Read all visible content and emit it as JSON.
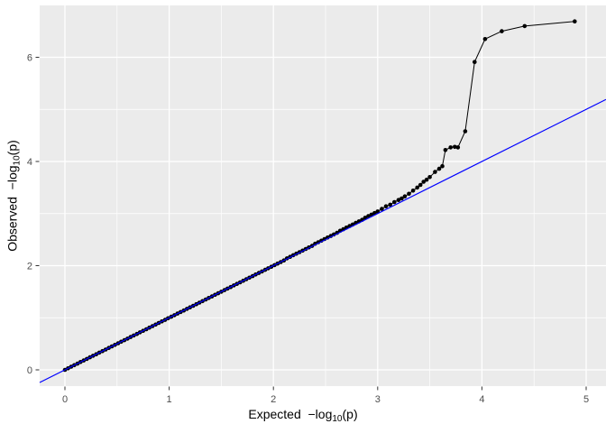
{
  "style": {
    "panel_bg": "#EBEBEB",
    "grid_color": "#FFFFFF",
    "tick_mark_color": "#333333",
    "tick_label_color": "#4D4D4D",
    "axis_title_color": "#000000",
    "point_color": "#000000",
    "ref_line_color": "#0000FF"
  },
  "chart_data": {
    "type": "scatter",
    "subtype": "qq-plot",
    "title": "",
    "xlabel_prefix": "Expected  −log",
    "xlabel_sub": "10",
    "xlabel_suffix": "(p)",
    "ylabel_prefix": "Observed  −log",
    "ylabel_sub": "10",
    "ylabel_suffix": "(p)",
    "x_ticks": [
      0,
      1,
      2,
      3,
      4,
      5
    ],
    "y_ticks": [
      0,
      2,
      4,
      6
    ],
    "x_minor_ticks": [
      0.5,
      1.5,
      2.5,
      3.5,
      4.5
    ],
    "y_minor_ticks": [
      1,
      3,
      5
    ],
    "xlim": [
      -0.24,
      5.19
    ],
    "ylim": [
      -0.31,
      6.99
    ],
    "grid": true,
    "legend_position": "none",
    "reference_line": {
      "slope": 1,
      "intercept": 0,
      "color": "#0000FF"
    },
    "series": [
      {
        "name": "observed-vs-expected",
        "marker": "filled-circle",
        "connect": true,
        "color": "#000000",
        "points": [
          [
            0.0,
            0.0
          ],
          [
            0.03,
            0.03
          ],
          [
            0.06,
            0.06
          ],
          [
            0.09,
            0.09
          ],
          [
            0.12,
            0.12
          ],
          [
            0.15,
            0.15
          ],
          [
            0.18,
            0.18
          ],
          [
            0.21,
            0.21
          ],
          [
            0.24,
            0.24
          ],
          [
            0.27,
            0.27
          ],
          [
            0.3,
            0.3
          ],
          [
            0.33,
            0.33
          ],
          [
            0.36,
            0.36
          ],
          [
            0.39,
            0.39
          ],
          [
            0.42,
            0.42
          ],
          [
            0.45,
            0.45
          ],
          [
            0.48,
            0.48
          ],
          [
            0.51,
            0.51
          ],
          [
            0.54,
            0.54
          ],
          [
            0.57,
            0.57
          ],
          [
            0.6,
            0.6
          ],
          [
            0.63,
            0.63
          ],
          [
            0.66,
            0.66
          ],
          [
            0.69,
            0.69
          ],
          [
            0.72,
            0.72
          ],
          [
            0.75,
            0.75
          ],
          [
            0.78,
            0.78
          ],
          [
            0.81,
            0.81
          ],
          [
            0.84,
            0.84
          ],
          [
            0.87,
            0.87
          ],
          [
            0.9,
            0.9
          ],
          [
            0.93,
            0.93
          ],
          [
            0.96,
            0.96
          ],
          [
            0.99,
            0.99
          ],
          [
            1.02,
            1.02
          ],
          [
            1.05,
            1.05
          ],
          [
            1.08,
            1.08
          ],
          [
            1.11,
            1.11
          ],
          [
            1.14,
            1.14
          ],
          [
            1.17,
            1.17
          ],
          [
            1.2,
            1.2
          ],
          [
            1.23,
            1.23
          ],
          [
            1.26,
            1.26
          ],
          [
            1.29,
            1.29
          ],
          [
            1.32,
            1.32
          ],
          [
            1.35,
            1.35
          ],
          [
            1.38,
            1.38
          ],
          [
            1.41,
            1.41
          ],
          [
            1.44,
            1.44
          ],
          [
            1.47,
            1.47
          ],
          [
            1.5,
            1.5
          ],
          [
            1.53,
            1.53
          ],
          [
            1.56,
            1.56
          ],
          [
            1.59,
            1.59
          ],
          [
            1.62,
            1.62
          ],
          [
            1.65,
            1.65
          ],
          [
            1.68,
            1.68
          ],
          [
            1.71,
            1.71
          ],
          [
            1.74,
            1.74
          ],
          [
            1.77,
            1.77
          ],
          [
            1.8,
            1.8
          ],
          [
            1.83,
            1.83
          ],
          [
            1.86,
            1.86
          ],
          [
            1.89,
            1.89
          ],
          [
            1.92,
            1.92
          ],
          [
            1.95,
            1.95
          ],
          [
            1.98,
            1.98
          ],
          [
            2.01,
            2.01
          ],
          [
            2.04,
            2.04
          ],
          [
            2.07,
            2.07
          ],
          [
            2.1,
            2.1
          ],
          [
            2.13,
            2.14
          ],
          [
            2.16,
            2.17
          ],
          [
            2.19,
            2.2
          ],
          [
            2.22,
            2.23
          ],
          [
            2.25,
            2.26
          ],
          [
            2.28,
            2.29
          ],
          [
            2.31,
            2.32
          ],
          [
            2.34,
            2.35
          ],
          [
            2.37,
            2.38
          ],
          [
            2.4,
            2.42
          ],
          [
            2.43,
            2.45
          ],
          [
            2.46,
            2.48
          ],
          [
            2.49,
            2.51
          ],
          [
            2.52,
            2.54
          ],
          [
            2.55,
            2.57
          ],
          [
            2.58,
            2.6
          ],
          [
            2.61,
            2.63
          ],
          [
            2.64,
            2.67
          ],
          [
            2.67,
            2.7
          ],
          [
            2.7,
            2.73
          ],
          [
            2.73,
            2.76
          ],
          [
            2.76,
            2.79
          ],
          [
            2.79,
            2.82
          ],
          [
            2.82,
            2.85
          ],
          [
            2.85,
            2.88
          ],
          [
            2.88,
            2.92
          ],
          [
            2.91,
            2.95
          ],
          [
            2.94,
            2.98
          ],
          [
            2.97,
            3.01
          ],
          [
            3.0,
            3.04
          ],
          [
            3.04,
            3.09
          ],
          [
            3.08,
            3.14
          ],
          [
            3.12,
            3.17
          ],
          [
            3.16,
            3.22
          ],
          [
            3.2,
            3.26
          ],
          [
            3.23,
            3.29
          ],
          [
            3.26,
            3.33
          ],
          [
            3.3,
            3.38
          ],
          [
            3.34,
            3.44
          ],
          [
            3.38,
            3.5
          ],
          [
            3.41,
            3.55
          ],
          [
            3.44,
            3.61
          ],
          [
            3.47,
            3.65
          ],
          [
            3.5,
            3.7
          ],
          [
            3.55,
            3.8
          ],
          [
            3.59,
            3.86
          ],
          [
            3.62,
            3.91
          ],
          [
            3.65,
            4.22
          ],
          [
            3.7,
            4.27
          ],
          [
            3.74,
            4.28
          ],
          [
            3.77,
            4.27
          ],
          [
            3.84,
            4.58
          ],
          [
            3.93,
            5.91
          ],
          [
            4.03,
            6.35
          ],
          [
            4.19,
            6.5
          ],
          [
            4.41,
            6.6
          ],
          [
            4.89,
            6.69
          ]
        ]
      }
    ]
  }
}
